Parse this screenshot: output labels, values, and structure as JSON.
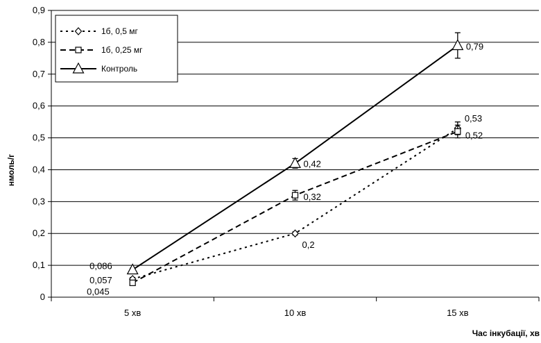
{
  "chart_data": {
    "type": "line",
    "categories": [
      "5 хв",
      "10 хв",
      "15 хв"
    ],
    "xlabel": "Час інкубації, хв",
    "ylabel": "нмоль/г",
    "ylim": [
      0,
      0.9
    ],
    "yticks": [
      "0",
      "0,1",
      "0,2",
      "0,3",
      "0,4",
      "0,5",
      "0,6",
      "0,7",
      "0,8",
      "0,9"
    ],
    "grid": true,
    "legend_position": "top-left",
    "series": [
      {
        "name": "1б, 0,5 мг",
        "values": [
          0.057,
          0.2,
          0.53
        ],
        "labels": [
          "0,057",
          "0,2",
          "0,53"
        ],
        "errors": [
          0.005,
          0.005,
          0.02
        ],
        "marker": "diamond",
        "dash": "dotted"
      },
      {
        "name": "1б, 0,25 мг",
        "values": [
          0.045,
          0.32,
          0.52
        ],
        "labels": [
          "0,045",
          "0,32",
          "0,52"
        ],
        "errors": [
          0.005,
          0.015,
          0.02
        ],
        "marker": "square",
        "dash": "dashed"
      },
      {
        "name": "Контроль",
        "values": [
          0.086,
          0.42,
          0.79
        ],
        "labels": [
          "0,086",
          "0,42",
          "0,79"
        ],
        "errors": [
          0.005,
          0.015,
          0.04
        ],
        "marker": "triangle",
        "dash": "solid"
      }
    ]
  }
}
